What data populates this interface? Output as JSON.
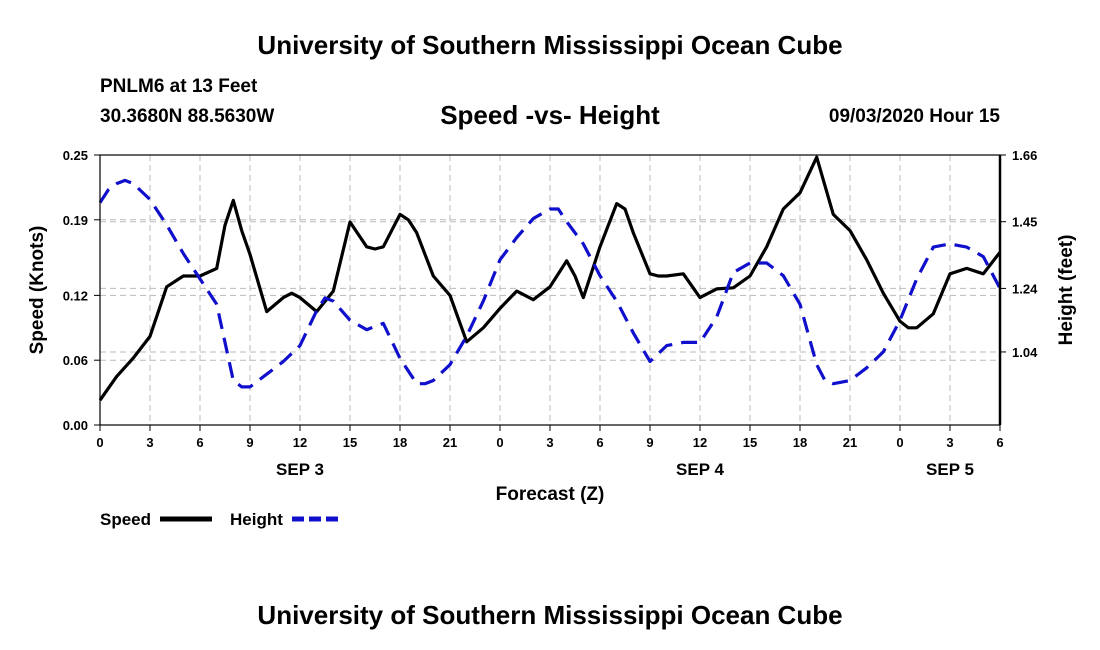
{
  "header": {
    "title": "University of Southern Mississippi Ocean Cube",
    "station": "PNLM6 at 13 Feet",
    "coords": "30.3680N 88.5630W",
    "chart_title": "Speed -vs- Height",
    "date_hour": "09/03/2020 Hour 15"
  },
  "footer": {
    "title": "University of Southern Mississippi Ocean Cube"
  },
  "colors": {
    "speed": "#000000",
    "height": "#1010cc",
    "grid": "#bbbbbb"
  },
  "chart_data": {
    "type": "line",
    "title": "Speed -vs- Height",
    "xlabel": "Forecast (Z)",
    "ylabel": "Speed (Knots)",
    "y2label": "Height (feet)",
    "xlim": [
      0,
      54
    ],
    "ylim": [
      0,
      0.25
    ],
    "y2lim": [
      0.81,
      1.66
    ],
    "x_ticks": [
      0,
      3,
      6,
      9,
      12,
      15,
      18,
      21,
      24,
      27,
      30,
      33,
      36,
      39,
      42,
      45,
      48,
      51,
      54
    ],
    "x_tick_labels": [
      "0",
      "3",
      "6",
      "9",
      "12",
      "15",
      "18",
      "21",
      "0",
      "3",
      "6",
      "9",
      "12",
      "15",
      "18",
      "21",
      "0",
      "3",
      "6"
    ],
    "day_labels": [
      {
        "x": 12,
        "label": "SEP 3"
      },
      {
        "x": 36,
        "label": "SEP 4"
      },
      {
        "x": 51,
        "label": "SEP 5"
      }
    ],
    "y_ticks": [
      0.0,
      0.06,
      0.12,
      0.19,
      0.25
    ],
    "y_tick_labels": [
      "0.00",
      "0.06",
      "0.12",
      "0.19",
      "0.25"
    ],
    "y2_ticks": [
      1.04,
      1.24,
      1.45,
      1.66
    ],
    "y2_tick_labels": [
      "1.04",
      "1.24",
      "1.45",
      "1.66"
    ],
    "grid": true,
    "legend_position": "bottom-left",
    "series": [
      {
        "name": "Speed",
        "axis": "left",
        "style": "solid",
        "x": [
          0,
          1,
          2,
          3,
          4,
          5,
          6,
          7,
          7.5,
          8,
          8.5,
          9,
          10,
          11,
          11.5,
          12,
          13,
          14,
          15,
          16,
          16.5,
          17,
          18,
          18.5,
          19,
          20,
          21,
          22,
          23,
          24,
          25,
          26,
          27,
          28,
          28.5,
          29,
          30,
          31,
          31.5,
          32,
          33,
          33.5,
          34,
          35,
          36,
          37,
          38,
          39,
          40,
          41,
          42,
          43,
          44,
          45,
          46,
          47,
          48,
          48.5,
          49,
          50,
          51,
          52,
          53,
          54
        ],
        "values": [
          0.023,
          0.045,
          0.062,
          0.082,
          0.128,
          0.138,
          0.138,
          0.145,
          0.185,
          0.208,
          0.18,
          0.158,
          0.105,
          0.118,
          0.122,
          0.118,
          0.105,
          0.124,
          0.188,
          0.165,
          0.163,
          0.165,
          0.195,
          0.19,
          0.178,
          0.138,
          0.12,
          0.077,
          0.09,
          0.108,
          0.124,
          0.116,
          0.128,
          0.152,
          0.138,
          0.118,
          0.165,
          0.205,
          0.2,
          0.178,
          0.14,
          0.138,
          0.138,
          0.14,
          0.118,
          0.126,
          0.127,
          0.138,
          0.165,
          0.2,
          0.215,
          0.248,
          0.195,
          0.18,
          0.153,
          0.122,
          0.096,
          0.09,
          0.09,
          0.103,
          0.14,
          0.145,
          0.14,
          0.16
        ]
      },
      {
        "name": "Height",
        "axis": "right",
        "style": "dashed",
        "x": [
          0,
          0.5,
          1,
          1.5,
          2,
          3,
          4,
          5,
          6,
          7,
          8,
          8.5,
          9,
          10,
          11,
          12,
          13,
          13.5,
          14,
          15,
          16,
          16.5,
          17,
          18,
          19,
          19.5,
          20,
          21,
          22,
          23,
          24,
          25,
          26,
          27,
          27.5,
          28,
          29,
          30,
          31,
          32,
          33,
          34,
          35,
          36,
          37,
          38,
          39,
          40,
          41,
          42,
          43,
          43.5,
          44,
          45,
          46,
          47,
          48,
          49,
          50,
          51,
          52,
          53,
          54
        ],
        "values": [
          1.51,
          1.55,
          1.57,
          1.58,
          1.57,
          1.52,
          1.44,
          1.35,
          1.27,
          1.19,
          0.95,
          0.93,
          0.93,
          0.97,
          1.01,
          1.06,
          1.17,
          1.21,
          1.2,
          1.14,
          1.11,
          1.12,
          1.13,
          1.02,
          0.94,
          0.94,
          0.95,
          1.0,
          1.09,
          1.2,
          1.33,
          1.4,
          1.46,
          1.49,
          1.49,
          1.45,
          1.38,
          1.28,
          1.2,
          1.1,
          1.01,
          1.06,
          1.07,
          1.07,
          1.15,
          1.29,
          1.32,
          1.32,
          1.28,
          1.19,
          1.0,
          0.95,
          0.94,
          0.95,
          0.99,
          1.04,
          1.14,
          1.27,
          1.37,
          1.38,
          1.37,
          1.34,
          1.24
        ]
      }
    ]
  }
}
